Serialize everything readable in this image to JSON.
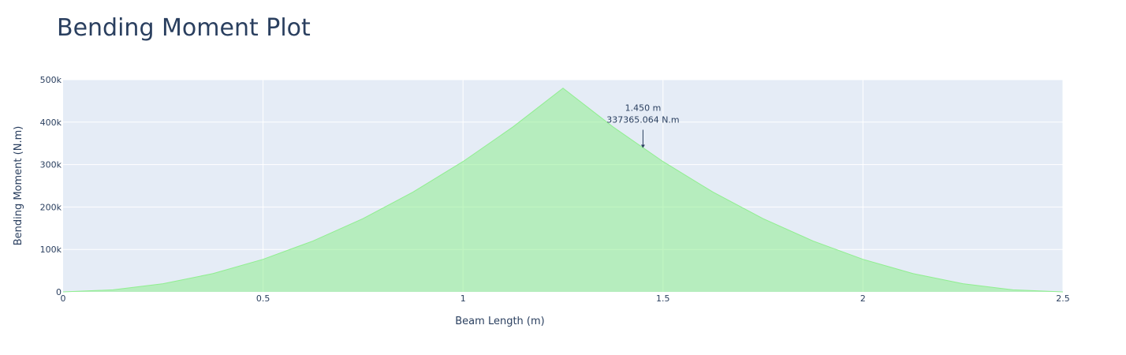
{
  "title": "Bending Moment Plot",
  "chart_data": {
    "type": "area",
    "xlabel": "Beam Length (m)",
    "ylabel": "Bending Moment (N.m)",
    "xlim": [
      0,
      2.5
    ],
    "ylim": [
      0,
      500000
    ],
    "x_ticks": [
      {
        "value": 0,
        "label": "0"
      },
      {
        "value": 0.5,
        "label": "0.5"
      },
      {
        "value": 1,
        "label": "1"
      },
      {
        "value": 1.5,
        "label": "1.5"
      },
      {
        "value": 2,
        "label": "2"
      },
      {
        "value": 2.5,
        "label": "2.5"
      }
    ],
    "y_ticks": [
      {
        "value": 0,
        "label": "0"
      },
      {
        "value": 100000,
        "label": "100k"
      },
      {
        "value": 200000,
        "label": "200k"
      },
      {
        "value": 300000,
        "label": "300k"
      },
      {
        "value": 400000,
        "label": "400k"
      },
      {
        "value": 500000,
        "label": "500k"
      }
    ],
    "grid": true,
    "series": [
      {
        "color": "#90ee90",
        "x": [
          0,
          0.125,
          0.25,
          0.375,
          0.5,
          0.625,
          0.75,
          0.875,
          1.0,
          1.125,
          1.25,
          1.375,
          1.5,
          1.625,
          1.75,
          1.875,
          2.0,
          2.125,
          2.25,
          2.375,
          2.5
        ],
        "y": [
          0,
          4800,
          19200,
          43200,
          76800,
          120000,
          172800,
          235200,
          307200,
          388800,
          480000,
          388800,
          307200,
          235200,
          172800,
          120000,
          76800,
          43200,
          19200,
          4800,
          0
        ]
      }
    ],
    "annotations": [
      {
        "x": 1.45,
        "y": 337365.064,
        "lines": [
          "1.450 m",
          "337365.064 N.m"
        ]
      }
    ]
  }
}
